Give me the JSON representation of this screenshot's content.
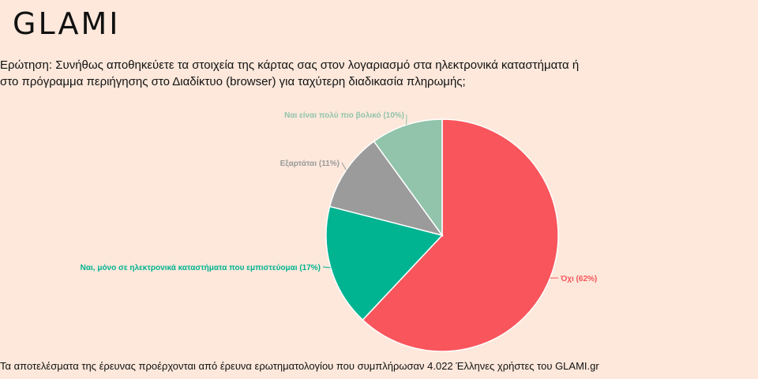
{
  "brand": {
    "logo_text": "GLAMI"
  },
  "question": "Ερώτηση: Συνήθως αποθηκεύετε τα στοιχεία της κάρτας σας στον λογαριασμό στα ηλεκτρονικά καταστήματα ή στο πρόγραμμα περιήγησης στο Διαδίκτυο (browser) για ταχύτερη διαδικασία πληρωμής;",
  "footer": "Τα αποτελέσματα της έρευνας προέρχονται από έρευνα ερωτηματολογίου που συμπλήρωσαν 4.022 Έλληνες χρήστες του GLAMI.gr",
  "chart_data": {
    "type": "pie",
    "start_angle_deg": 0,
    "direction": "clockwise",
    "slices": [
      {
        "label": "Όχι (62%)",
        "value": 62,
        "color": "#f9555c"
      },
      {
        "label": "Ναι, μόνο σε ηλεκτρονικά καταστήματα που εμπιστεύομαι (17%)",
        "value": 17,
        "color": "#00b391"
      },
      {
        "label": "Εξαρτάται (11%)",
        "value": 11,
        "color": "#9b9b9b"
      },
      {
        "label": "Ναι είναι πολύ πιο βολικό (10%)",
        "value": 10,
        "color": "#91c4aa"
      }
    ]
  }
}
